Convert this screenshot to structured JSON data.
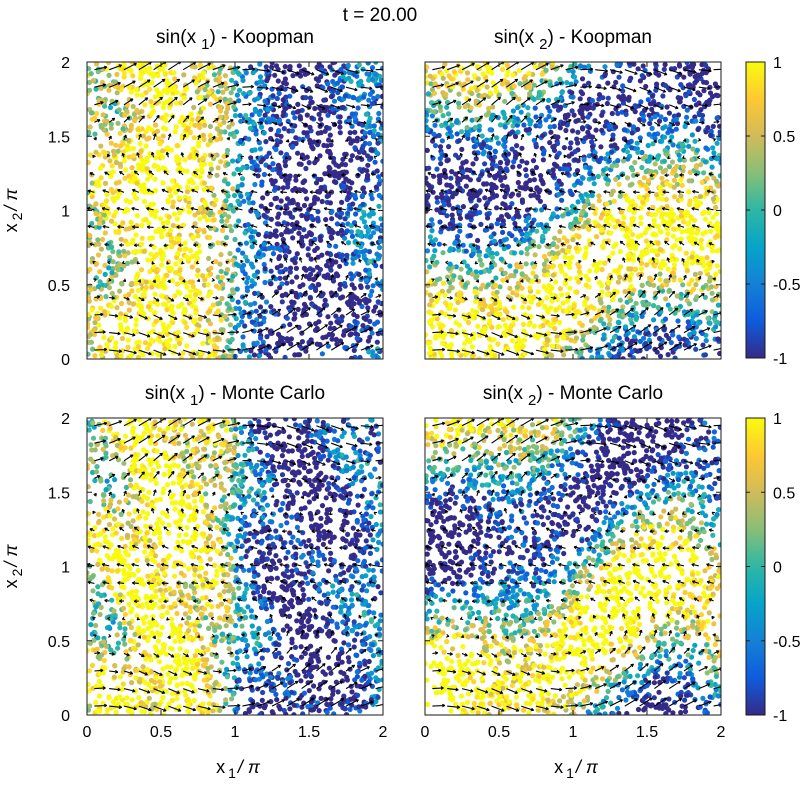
{
  "figure_title": "t = 20.00",
  "chart_data": [
    {
      "type": "scatter",
      "panel": "top-left",
      "title": "sin(x 1) - Koopman",
      "title_parts": {
        "prefix": "sin(x",
        "sub": "1",
        "suffix": ") - Koopman"
      },
      "field": "sin_x1",
      "method": "koopman",
      "xlabel": "x1/π",
      "ylabel": "x2/π",
      "xlim": [
        0,
        2
      ],
      "ylim": [
        0,
        2
      ],
      "x_ticks": [
        "0",
        "0.5",
        "1",
        "1.5",
        "2"
      ],
      "y_ticks": [
        "0",
        "0.5",
        "1",
        "1.5",
        "2"
      ],
      "show_xticklabels": false,
      "show_yticklabels": true,
      "show_xlabel": false,
      "show_ylabel": true,
      "colormap": "parula",
      "clim": [
        -1,
        1
      ],
      "overlay": "quiver vector field"
    },
    {
      "type": "scatter",
      "panel": "top-right",
      "title": "sin(x 2) - Koopman",
      "title_parts": {
        "prefix": "sin(x",
        "sub": "2",
        "suffix": ") - Koopman"
      },
      "field": "sin_x2",
      "method": "koopman",
      "xlabel": "x1/π",
      "ylabel": "x2/π",
      "xlim": [
        0,
        2
      ],
      "ylim": [
        0,
        2
      ],
      "x_ticks": [
        "0",
        "0.5",
        "1",
        "1.5",
        "2"
      ],
      "y_ticks": [
        "0",
        "0.5",
        "1",
        "1.5",
        "2"
      ],
      "show_xticklabels": false,
      "show_yticklabels": false,
      "show_xlabel": false,
      "show_ylabel": false,
      "colormap": "parula",
      "clim": [
        -1,
        1
      ],
      "colorbar_ticks": [
        "1",
        "0.5",
        "0",
        "-0.5",
        "-1"
      ],
      "overlay": "quiver vector field"
    },
    {
      "type": "scatter",
      "panel": "bottom-left",
      "title": "sin(x 1) - Monte Carlo",
      "title_parts": {
        "prefix": "sin(x",
        "sub": "1",
        "suffix": ") - Monte Carlo"
      },
      "field": "sin_x1",
      "method": "montecarlo",
      "xlabel": "x1/π",
      "ylabel": "x2/π",
      "xlim": [
        0,
        2
      ],
      "ylim": [
        0,
        2
      ],
      "x_ticks": [
        "0",
        "0.5",
        "1",
        "1.5",
        "2"
      ],
      "y_ticks": [
        "0",
        "0.5",
        "1",
        "1.5",
        "2"
      ],
      "show_xticklabels": true,
      "show_yticklabels": true,
      "show_xlabel": true,
      "show_ylabel": true,
      "colormap": "parula",
      "clim": [
        -1,
        1
      ],
      "overlay": "quiver vector field"
    },
    {
      "type": "scatter",
      "panel": "bottom-right",
      "title": "sin(x 2) - Monte Carlo",
      "title_parts": {
        "prefix": "sin(x",
        "sub": "2",
        "suffix": ") - Monte Carlo"
      },
      "field": "sin_x2",
      "method": "montecarlo",
      "xlabel": "x1/π",
      "ylabel": "x2/π",
      "xlim": [
        0,
        2
      ],
      "ylim": [
        0,
        2
      ],
      "x_ticks": [
        "0",
        "0.5",
        "1",
        "1.5",
        "2"
      ],
      "y_ticks": [
        "0",
        "0.5",
        "1",
        "1.5",
        "2"
      ],
      "show_xticklabels": true,
      "show_yticklabels": false,
      "show_xlabel": true,
      "show_ylabel": false,
      "colormap": "parula",
      "clim": [
        -1,
        1
      ],
      "colorbar_ticks": [
        "1",
        "0.5",
        "0",
        "-0.5",
        "-1"
      ],
      "overlay": "quiver vector field"
    }
  ],
  "axis_labels": {
    "x_main": "x",
    "x_sub": "1",
    "x_div": "/ π",
    "y_main": "x",
    "y_sub": "2",
    "y_div": "/ π"
  },
  "colors": {
    "parula_stops": [
      "#352a87",
      "#0f5cdd",
      "#1481d6",
      "#06a4ca",
      "#2eb7a4",
      "#87bf77",
      "#d1bb59",
      "#fec832",
      "#f9fb0e"
    ],
    "arrow": "#000000",
    "frame": "#1a1a1a"
  }
}
